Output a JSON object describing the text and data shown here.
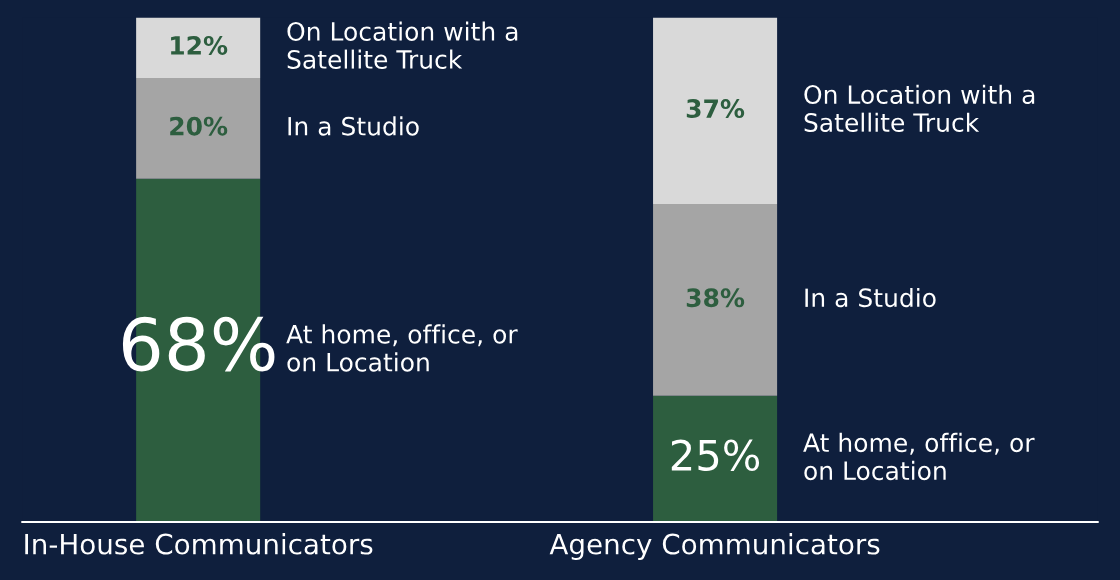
{
  "chart_data": {
    "type": "bar",
    "stacked": true,
    "categories": [
      "In-House Communicators",
      "Agency Communicators"
    ],
    "series": [
      {
        "name": "At home, office, or\non Location",
        "color": "#2d5e3f",
        "values": [
          68,
          25
        ],
        "value_labels": [
          "68%",
          "25%"
        ]
      },
      {
        "name": "In a Studio",
        "color": "#a5a5a5",
        "values": [
          20,
          38
        ],
        "value_labels": [
          "20%",
          "38%"
        ]
      },
      {
        "name": "On Location with a\nSatellite Truck",
        "color": "#d9d9d9",
        "values": [
          12,
          37
        ],
        "value_labels": [
          "12%",
          "37%"
        ]
      }
    ],
    "legend": false,
    "grid": false
  }
}
